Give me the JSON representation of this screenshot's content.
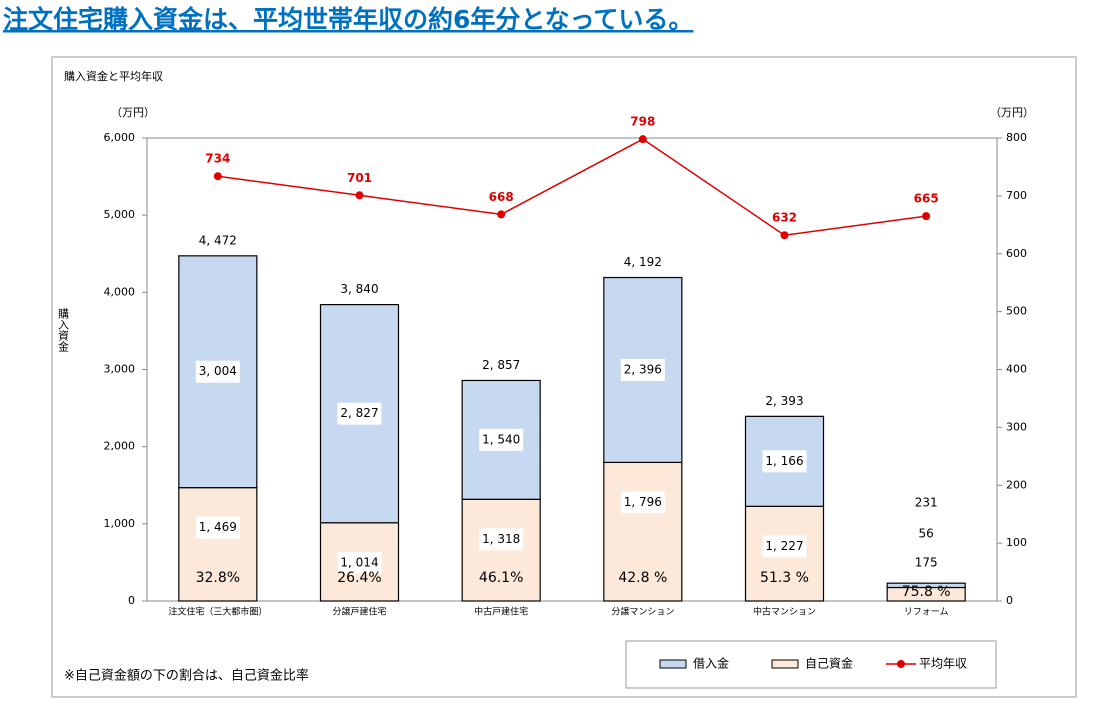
{
  "heading": "注文住宅購入資金は、平均世帯年収の約6年分となっている。",
  "footnote": "※自己資金額の下の割合は、自己資金比率",
  "chart_data": {
    "type": "bar-line",
    "title": "購入資金と平均年収",
    "y_unit": "（万円）",
    "y2_unit": "（万円）",
    "ylabel": "購入資金",
    "categories": [
      "注文住宅（三大都市圏）",
      "分譲戸建住宅",
      "中古戸建住宅",
      "分譲マンション",
      "中古マンション",
      "リフォーム"
    ],
    "series": [
      {
        "name": "自己資金",
        "color": "#fde9d9",
        "values": [
          1469,
          1014,
          1318,
          1796,
          1227,
          175
        ],
        "value_labels": [
          "1, 469",
          "1, 014",
          "1, 318",
          "1, 796",
          "1, 227",
          "175"
        ]
      },
      {
        "name": "借入金",
        "color": "#c6d9f0",
        "values": [
          3004,
          2827,
          1540,
          2396,
          1166,
          56
        ],
        "value_labels": [
          "3, 004",
          "2, 827",
          "1, 540",
          "2, 396",
          "1, 166",
          "56"
        ]
      },
      {
        "name": "平均年収",
        "color": "#e00000",
        "axis": "y2",
        "values": [
          734,
          701,
          668,
          798,
          632,
          665
        ]
      }
    ],
    "totals": [
      4472,
      3840,
      2857,
      4192,
      2393,
      231
    ],
    "total_labels": [
      "4, 472",
      "3, 840",
      "2, 857",
      "4, 192",
      "2, 393",
      "231"
    ],
    "ratios": [
      32.8,
      26.4,
      46.1,
      42.8,
      51.3,
      75.8
    ],
    "ratio_labels": [
      "32.8%",
      "26.4%",
      "46.1%",
      "42.8 %",
      "51.3 %",
      "75.8 %"
    ],
    "ylim": [
      0,
      6000
    ],
    "yticks": [
      0,
      {
        "value": 1000,
        "label": "1,000"
      },
      {
        "value": 2000,
        "label": "2,000"
      },
      {
        "value": 3000,
        "label": "3,000"
      },
      {
        "value": 4000,
        "label": "4,000"
      },
      {
        "value": 5000,
        "label": "5,000"
      },
      {
        "value": 6000,
        "label": "6,000"
      }
    ],
    "y2lim": [
      0,
      800
    ],
    "y2ticks": [
      0,
      100,
      200,
      300,
      400,
      500,
      600,
      700,
      800
    ]
  }
}
